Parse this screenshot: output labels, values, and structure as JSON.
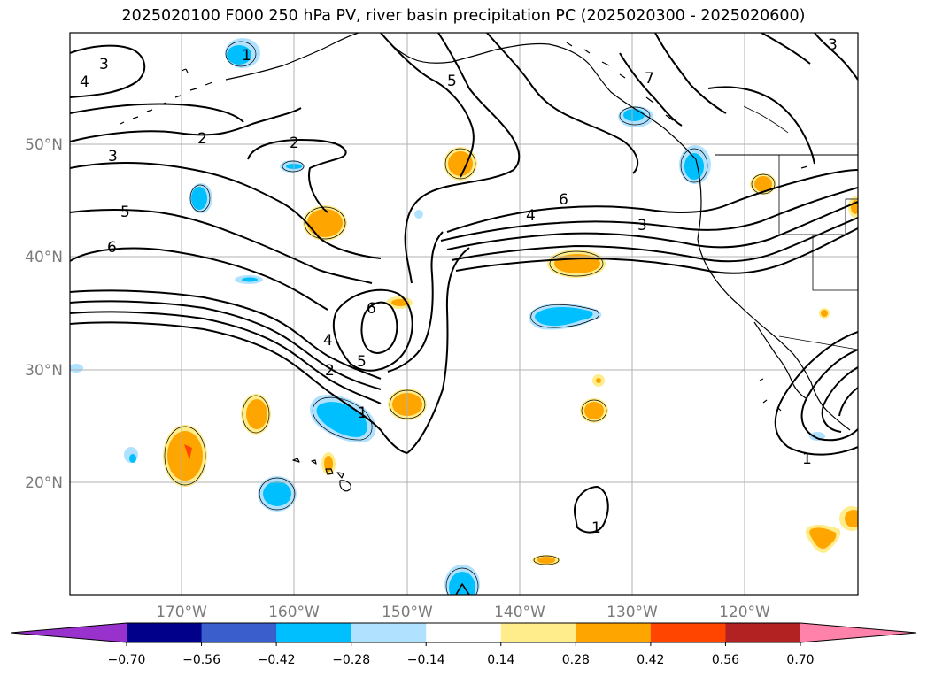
{
  "title": "2025020100 F000 250 hPa PV, river basin precipitation PC (2025020300 - 2025020600)",
  "lat_labels": [
    "50°N",
    "40°N",
    "30°N",
    "20°N"
  ],
  "lon_labels": [
    "170°W",
    "160°W",
    "150°W",
    "140°W",
    "130°W",
    "120°W"
  ],
  "colorbar": {
    "ticks": [
      "−0.70",
      "−0.56",
      "−0.42",
      "−0.28",
      "−0.14",
      "0.14",
      "0.28",
      "0.42",
      "0.56",
      "0.70"
    ],
    "colors": [
      "#9932cc",
      "#00008b",
      "#3a5fcd",
      "#00bfff",
      "#b0e2ff",
      "#ffffff",
      "#ffec8b",
      "#ffa500",
      "#ff4500",
      "#b22222",
      "#ff82ab"
    ]
  },
  "contour_labels": [
    "3",
    "4",
    "2",
    "2",
    "3",
    "5",
    "6",
    "1",
    "5",
    "7",
    "6",
    "4",
    "3",
    "6",
    "4",
    "2",
    "5",
    "1",
    "1",
    "3",
    "1"
  ],
  "colors": {
    "neg_light": "#b0e2ff",
    "neg_mid": "#00bfff",
    "pos_light": "#ffec8b",
    "pos_mid": "#ffa500",
    "pos_strong": "#ff4500"
  }
}
